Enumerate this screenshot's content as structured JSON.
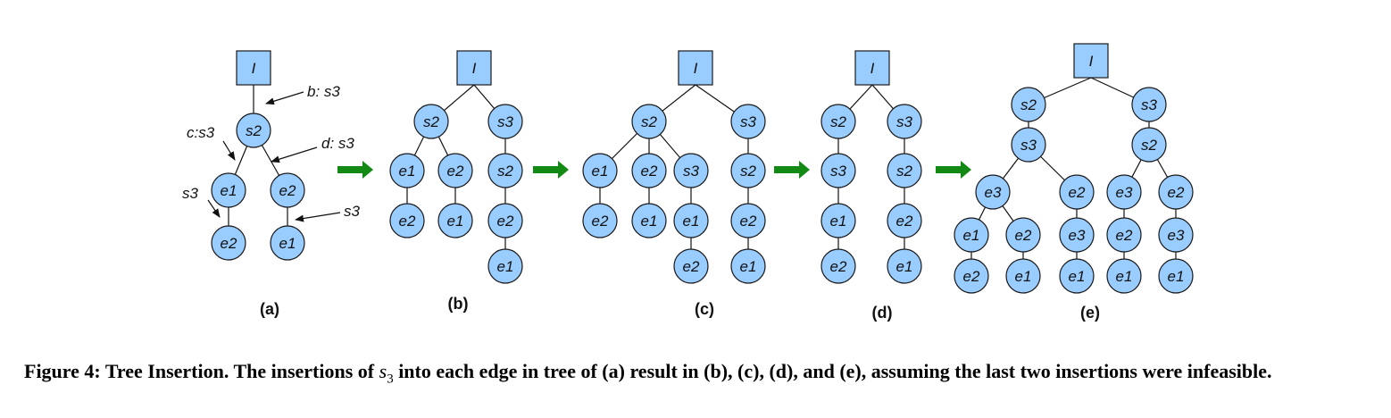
{
  "figure": {
    "node_fill": "#99ccff",
    "node_stroke": "#1a1a1a",
    "arrow_color": "#138a13",
    "panels": [
      {
        "id": "a",
        "label": "(a)"
      },
      {
        "id": "b",
        "label": "(b)"
      },
      {
        "id": "c",
        "label": "(c)"
      },
      {
        "id": "d",
        "label": "(d)"
      },
      {
        "id": "e",
        "label": "(e)"
      }
    ],
    "annotations": [
      "b: s3",
      "c:s3",
      "d: s3",
      "s3",
      "s3"
    ]
  },
  "caption": {
    "prefix": "Figure 4: Tree Insertion. The insertions of ",
    "symbol": "s",
    "subscript": "3",
    "suffix": " into each edge in tree of (a) result in (b), (c), (d), and (e), assuming the last two insertions were infeasible."
  }
}
